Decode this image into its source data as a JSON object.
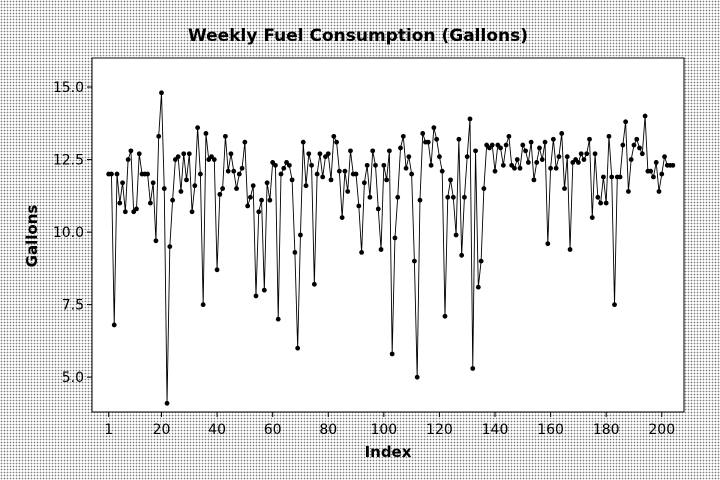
{
  "chart_data": {
    "type": "line",
    "title": "Weekly Fuel Consumption (Gallons)",
    "xlabel": "Index",
    "ylabel": "Gallons",
    "xlim": [
      -5,
      208
    ],
    "ylim": [
      3.8,
      16.0
    ],
    "xticks": [
      {
        "value": 1,
        "label": "1"
      },
      {
        "value": 20,
        "label": "20"
      },
      {
        "value": 40,
        "label": "40"
      },
      {
        "value": 60,
        "label": "60"
      },
      {
        "value": 80,
        "label": "80"
      },
      {
        "value": 100,
        "label": "100"
      },
      {
        "value": 120,
        "label": "120"
      },
      {
        "value": 140,
        "label": "140"
      },
      {
        "value": 160,
        "label": "160"
      },
      {
        "value": 180,
        "label": "180"
      },
      {
        "value": 200,
        "label": "200"
      }
    ],
    "yticks": [
      {
        "value": 5.0,
        "label": "5.0"
      },
      {
        "value": 7.5,
        "label": "7.5"
      },
      {
        "value": 10.0,
        "label": "10.0"
      },
      {
        "value": 12.5,
        "label": "12.5"
      },
      {
        "value": 15.0,
        "label": "15.0"
      }
    ],
    "grid": false,
    "marker": "filled-circle",
    "series": [
      {
        "color": "#000000",
        "values": [
          12.0,
          12.0,
          6.8,
          12.0,
          11.0,
          11.7,
          10.7,
          12.5,
          12.8,
          10.7,
          10.8,
          12.7,
          12.0,
          12.0,
          12.0,
          11.0,
          11.7,
          9.7,
          13.3,
          14.8,
          11.5,
          4.1,
          9.5,
          11.1,
          12.5,
          12.6,
          11.4,
          12.7,
          11.8,
          12.7,
          10.7,
          11.6,
          13.6,
          12.0,
          7.5,
          13.4,
          12.5,
          12.6,
          12.5,
          8.7,
          11.3,
          11.5,
          13.3,
          12.1,
          12.7,
          12.1,
          11.5,
          12.0,
          12.2,
          13.1,
          10.9,
          11.2,
          11.6,
          7.8,
          10.7,
          11.1,
          8.0,
          11.7,
          11.1,
          12.4,
          12.3,
          7.0,
          12.0,
          12.2,
          12.4,
          12.3,
          11.8,
          9.3,
          6.0,
          9.9,
          13.1,
          11.6,
          12.7,
          12.3,
          8.2,
          12.0,
          12.7,
          11.9,
          12.6,
          12.7,
          11.8,
          13.3,
          13.1,
          12.1,
          10.5,
          12.1,
          11.4,
          12.8,
          12.0,
          12.0,
          10.9,
          9.3,
          11.7,
          12.3,
          11.2,
          12.8,
          12.3,
          10.8,
          9.4,
          12.3,
          11.8,
          12.8,
          5.8,
          9.8,
          11.2,
          12.9,
          13.3,
          12.2,
          12.6,
          12.0,
          9.0,
          5.0,
          11.1,
          13.4,
          13.1,
          13.1,
          12.3,
          13.6,
          13.2,
          12.6,
          12.1,
          7.1,
          11.2,
          11.8,
          11.2,
          9.9,
          13.2,
          9.2,
          11.2,
          12.6,
          13.9,
          5.3,
          12.8,
          8.1,
          9.0,
          11.5,
          13.0,
          12.9,
          13.0,
          12.1,
          13.0,
          12.9,
          12.3,
          13.0,
          13.3,
          12.3,
          12.2,
          12.5,
          12.2,
          13.0,
          12.8,
          12.4,
          13.1,
          11.8,
          12.4,
          12.9,
          12.5,
          13.1,
          9.6,
          12.2,
          13.2,
          12.2,
          12.6,
          13.4,
          11.5,
          12.6,
          9.4,
          12.4,
          12.5,
          12.4,
          12.7,
          12.5,
          12.7,
          13.2,
          10.5,
          12.7,
          11.2,
          11.0,
          11.9,
          11.0,
          13.3,
          11.9,
          7.5,
          11.9,
          11.9,
          13.0,
          13.8,
          11.4,
          12.5,
          13.0,
          13.2,
          12.9,
          12.7,
          14.0,
          12.1,
          12.1,
          11.9,
          12.4,
          11.4,
          12.0,
          12.6,
          12.3,
          12.3,
          12.3
        ]
      }
    ]
  }
}
